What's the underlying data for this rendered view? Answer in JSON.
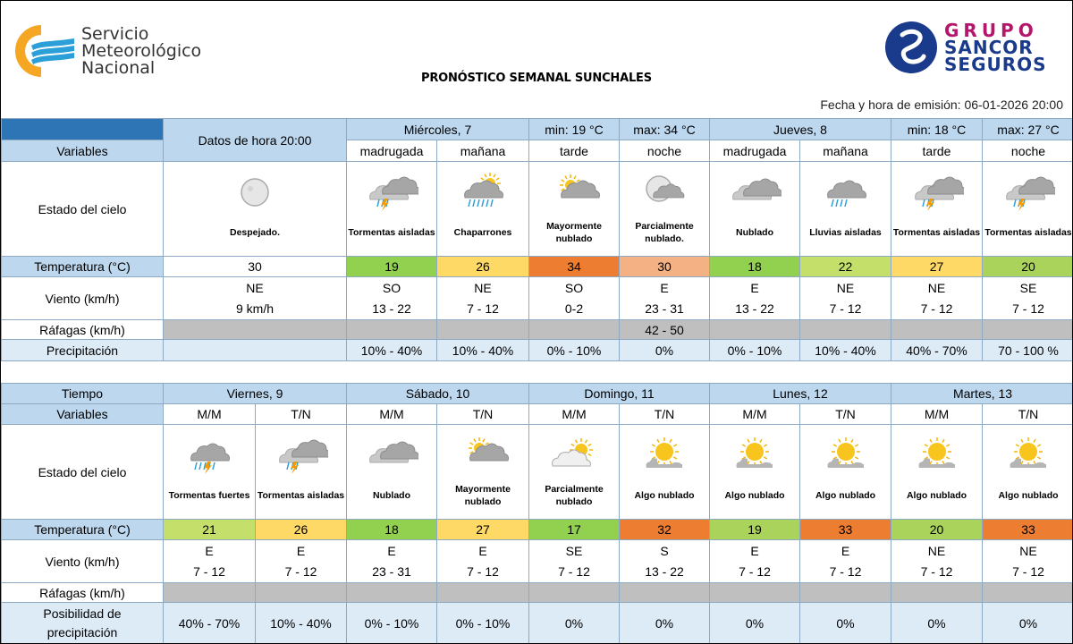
{
  "header": {
    "org_line1": "Servicio",
    "org_line2": "Meteorológico",
    "org_line3": "Nacional",
    "title": "PRONÓSTICO SEMANAL SUNCHALES",
    "sponsor_line1": "GRUPO",
    "sponsor_line2": "SANCOR",
    "sponsor_line3": "SEGUROS",
    "emission": "Fecha y hora de emisión: 06-01-2026  20:00"
  },
  "colors": {
    "header_blue": "#2e75b6",
    "label_blue": "#bdd7ee",
    "row_light": "#ddebf7",
    "gray": "#bfbfbf"
  },
  "labels": {
    "variables": "Variables",
    "tiempo": "Tiempo",
    "estado": "Estado del cielo",
    "temperatura": "Temperatura (°C)",
    "viento": "Viento (km/h)",
    "rafagas": "Ráfagas (km/h)",
    "precipitacion": "Precipitación",
    "posibilidad1": "Posibilidad de",
    "posibilidad2": "precipitación"
  },
  "current": {
    "header": "Datos de hora 20:00",
    "condition": "Despejado.",
    "icon": "moon",
    "temp": "30",
    "wind_dir": "NE",
    "wind_speed": "9 km/h"
  },
  "days_top": [
    {
      "name": "Miércoles, 7",
      "min": "min: 19 °C",
      "max": "max: 34 °C"
    },
    {
      "name": "Jueves, 8",
      "min": "min: 18 °C",
      "max": "max: 27 °C"
    }
  ],
  "periods_top": [
    {
      "label": "madrugada",
      "icon": "storm",
      "condition": "Tormentas aisladas",
      "temp": "19",
      "temp_color": "#92d050",
      "wind_dir": "SO",
      "wind_speed": "13 - 22",
      "gust": "",
      "precip": "10% - 40%"
    },
    {
      "label": "mañana",
      "icon": "showers",
      "condition": "Chaparrones",
      "temp": "26",
      "temp_color": "#ffd966",
      "wind_dir": "NE",
      "wind_speed": "7 - 12",
      "gust": "",
      "precip": "10% - 40%"
    },
    {
      "label": "tarde",
      "icon": "mostly-cloudy",
      "condition": "Mayormente nublado",
      "temp": "34",
      "temp_color": "#ed7d31",
      "wind_dir": "SO",
      "wind_speed": "0-2",
      "gust": "",
      "precip": "0% - 10%"
    },
    {
      "label": "noche",
      "icon": "partly-cloudy-night",
      "condition": "Parcialmente nublado.",
      "temp": "30",
      "temp_color": "#f4b183",
      "wind_dir": "E",
      "wind_speed": "23 - 31",
      "gust": "42 - 50",
      "precip": "0%"
    },
    {
      "label": "madrugada",
      "icon": "cloudy",
      "condition": "Nublado",
      "temp": "18",
      "temp_color": "#92d050",
      "wind_dir": "E",
      "wind_speed": "13 - 22",
      "gust": "",
      "precip": "0% - 10%"
    },
    {
      "label": "mañana",
      "icon": "rain",
      "condition": "Lluvias aisladas",
      "temp": "22",
      "temp_color": "#c4e06b",
      "wind_dir": "NE",
      "wind_speed": "7 - 12",
      "gust": "",
      "precip": "10% - 40%"
    },
    {
      "label": "tarde",
      "icon": "storm",
      "condition": "Tormentas aisladas",
      "temp": "27",
      "temp_color": "#ffd966",
      "wind_dir": "NE",
      "wind_speed": "7 - 12",
      "gust": "",
      "precip": "40% - 70%"
    },
    {
      "label": "noche",
      "icon": "storm",
      "condition": "Tormentas aisladas",
      "temp": "20",
      "temp_color": "#a9d35b",
      "wind_dir": "SE",
      "wind_speed": "7 - 12",
      "gust": "",
      "precip": "70 - 100 %"
    }
  ],
  "days_bottom": [
    {
      "name": "Viernes, 9"
    },
    {
      "name": "Sábado, 10"
    },
    {
      "name": "Domingo, 11"
    },
    {
      "name": "Lunes, 12"
    },
    {
      "name": "Martes, 13"
    }
  ],
  "periods_bottom": [
    {
      "label": "M/M",
      "icon": "strong-storm",
      "condition": "Tormentas fuertes",
      "temp": "21",
      "temp_color": "#c4e06b",
      "wind_dir": "E",
      "wind_speed": "7 - 12",
      "precip": "40% - 70%"
    },
    {
      "label": "T/N",
      "icon": "storm",
      "condition": "Tormentas aisladas",
      "temp": "26",
      "temp_color": "#ffd966",
      "wind_dir": "E",
      "wind_speed": "7 - 12",
      "precip": "10% - 40%"
    },
    {
      "label": "M/M",
      "icon": "cloudy",
      "condition": "Nublado",
      "temp": "18",
      "temp_color": "#92d050",
      "wind_dir": "E",
      "wind_speed": "23 - 31",
      "precip": "0% - 10%"
    },
    {
      "label": "T/N",
      "icon": "mostly-cloudy",
      "condition": "Mayormente nublado",
      "temp": "27",
      "temp_color": "#ffd966",
      "wind_dir": "E",
      "wind_speed": "7 - 12",
      "precip": "0% - 10%"
    },
    {
      "label": "M/M",
      "icon": "partly-cloudy",
      "condition": "Parcialmente nublado",
      "temp": "17",
      "temp_color": "#92d050",
      "wind_dir": "SE",
      "wind_speed": "7 - 12",
      "precip": "0%"
    },
    {
      "label": "T/N",
      "icon": "sun-cloud",
      "condition": "Algo nublado",
      "temp": "32",
      "temp_color": "#ed7d31",
      "wind_dir": "S",
      "wind_speed": "13 - 22",
      "precip": "0%"
    },
    {
      "label": "M/M",
      "icon": "sun-cloud",
      "condition": "Algo nublado",
      "temp": "19",
      "temp_color": "#a9d35b",
      "wind_dir": "E",
      "wind_speed": "7 - 12",
      "precip": "0%"
    },
    {
      "label": "T/N",
      "icon": "sun-cloud",
      "condition": "Algo nublado",
      "temp": "33",
      "temp_color": "#ed7d31",
      "wind_dir": "E",
      "wind_speed": "7 - 12",
      "precip": "0%"
    },
    {
      "label": "M/M",
      "icon": "sun-cloud",
      "condition": "Algo nublado",
      "temp": "20",
      "temp_color": "#a9d35b",
      "wind_dir": "NE",
      "wind_speed": "7 - 12",
      "precip": "0%"
    },
    {
      "label": "T/N",
      "icon": "sun-cloud",
      "condition": "Algo nublado",
      "temp": "33",
      "temp_color": "#ed7d31",
      "wind_dir": "NE",
      "wind_speed": "7 - 12",
      "precip": "0%"
    }
  ]
}
